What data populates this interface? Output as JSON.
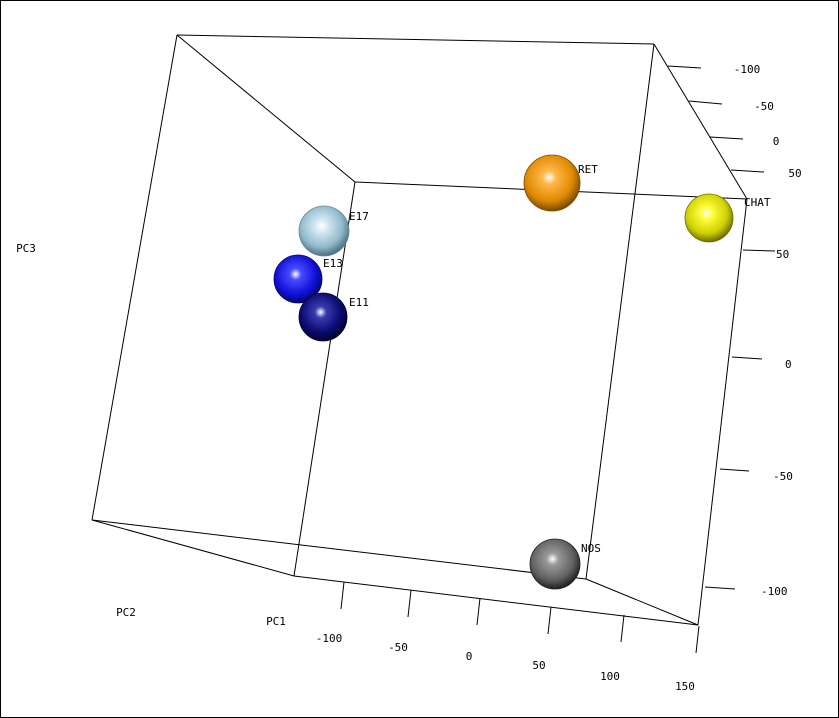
{
  "chart_data": {
    "type": "scatter3d",
    "title": "",
    "axes": {
      "x": {
        "label": "PC1",
        "ticks": [
          "-100",
          "-50",
          "0",
          "50",
          "100",
          "150"
        ]
      },
      "y": {
        "label": "PC2",
        "ticks": [
          "-100",
          "-50",
          "0",
          "50"
        ]
      },
      "z": {
        "label": "PC3",
        "ticks": [
          "50",
          "0",
          "-50",
          "-100"
        ]
      }
    },
    "points": [
      {
        "name": "E17",
        "color": "#a8d4e6"
      },
      {
        "name": "E13",
        "color": "#1a1aee"
      },
      {
        "name": "E11",
        "color": "#0a0a78"
      },
      {
        "name": "RET",
        "color": "#e08a00"
      },
      {
        "name": "CHAT",
        "color": "#d8d800"
      },
      {
        "name": "NOS",
        "color": "#555555"
      }
    ]
  }
}
